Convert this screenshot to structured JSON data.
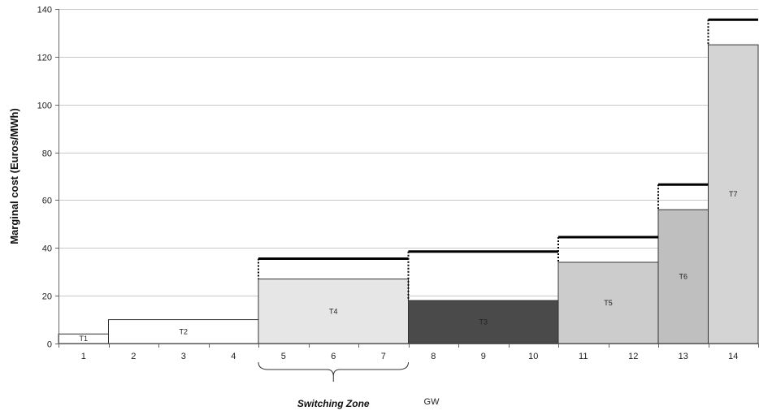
{
  "chart_data": {
    "type": "bar",
    "title": "",
    "ylabel": "Marginal cost (Euros/MWh)",
    "xlabel": "GW",
    "ylim": [
      0,
      140
    ],
    "yticks": [
      0,
      20,
      40,
      60,
      80,
      100,
      120,
      140
    ],
    "xlim": [
      0.5,
      14.5
    ],
    "xticks": [
      "1",
      "2",
      "3",
      "4",
      "5",
      "6",
      "7",
      "8",
      "9",
      "10",
      "11",
      "12",
      "13",
      "14"
    ],
    "grid": "horizontal",
    "blocks": [
      {
        "label": "T1",
        "x_start": 0.5,
        "x_end": 1.5,
        "value": 4,
        "fill": "#ffffff"
      },
      {
        "label": "T2",
        "x_start": 1.5,
        "x_end": 4.5,
        "value": 10,
        "fill": "#ffffff"
      },
      {
        "label": "T4",
        "x_start": 4.5,
        "x_end": 7.5,
        "value": 27,
        "fill": "#e6e6e6"
      },
      {
        "label": "T3",
        "x_start": 7.5,
        "x_end": 10.5,
        "value": 18,
        "fill": "#4a4a4a"
      },
      {
        "label": "T5",
        "x_start": 10.5,
        "x_end": 12.5,
        "value": 34,
        "fill": "#cccccc"
      },
      {
        "label": "T6",
        "x_start": 12.5,
        "x_end": 13.5,
        "value": 56,
        "fill": "#bfbfbf"
      },
      {
        "label": "T7",
        "x_start": 13.5,
        "x_end": 14.5,
        "value": 125,
        "fill": "#d4d4d4"
      }
    ],
    "upper_levels": [
      {
        "x_start": 4.5,
        "x_end": 7.5,
        "value": 35.5
      },
      {
        "x_start": 7.5,
        "x_end": 10.5,
        "value": 38.5
      },
      {
        "x_start": 10.5,
        "x_end": 12.5,
        "value": 44.5
      },
      {
        "x_start": 12.5,
        "x_end": 13.5,
        "value": 66.5
      },
      {
        "x_start": 13.5,
        "x_end": 14.5,
        "value": 135.5
      }
    ],
    "annotation": {
      "text": "Switching Zone",
      "x_start": 4.5,
      "x_end": 7.5
    }
  }
}
